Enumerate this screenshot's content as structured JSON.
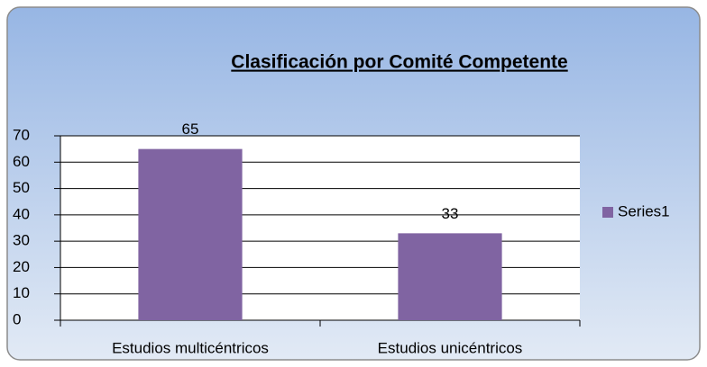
{
  "chart_data": {
    "type": "bar",
    "title": "Clasificación por Comité Competente",
    "categories": [
      "Estudios multicéntricos",
      "Estudios unicéntricos"
    ],
    "series": [
      {
        "name": "Series1",
        "color": "#8064a2",
        "values": [
          65,
          33
        ]
      }
    ],
    "ylim": [
      0,
      70
    ],
    "yticks": [
      0,
      10,
      20,
      30,
      40,
      50,
      60,
      70
    ],
    "grid": true,
    "legend": "right"
  }
}
